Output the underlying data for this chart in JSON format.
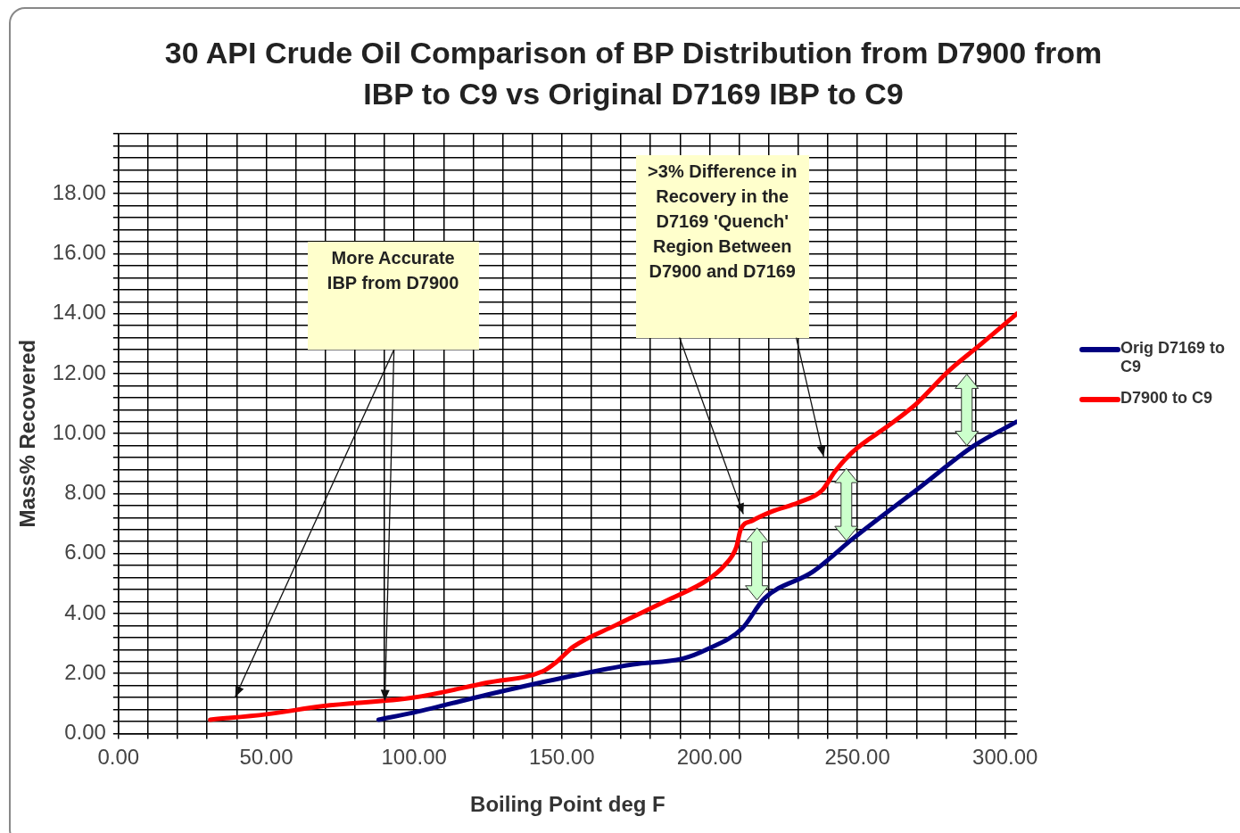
{
  "chart_data": {
    "type": "line",
    "title": "30 API Crude Oil Comparison of BP Distribution from D7900 from IBP to C9 vs Original D7169 IBP to C9",
    "xlabel": "Boiling Point deg F",
    "ylabel": "Mass% Recovered",
    "annotations": [
      "More Accurate IBP from D7900",
      ">3% Difference in Recovery in the D7169 'Quench' Region Between D7900 and D7169"
    ],
    "series": [
      {
        "name": "Orig D7169 to C9",
        "color": "#000080",
        "x": [
          88,
          100,
          125,
          150,
          174,
          191,
          199,
          211,
          218.5,
          235,
          248.5,
          271,
          289.5,
          304
        ],
        "values": [
          0.46,
          0.7,
          1.3,
          1.85,
          2.3,
          2.5,
          2.8,
          3.5,
          4.5,
          5.4,
          6.5,
          8.2,
          9.6,
          10.4
        ]
      },
      {
        "name": "D7900 to C9",
        "color": "#ff0000",
        "x": [
          31,
          50,
          69,
          100,
          125,
          143.5,
          148,
          154,
          168,
          187,
          199,
          205,
          209,
          210.5,
          214.5,
          221,
          230,
          238,
          242.5,
          248.5,
          261,
          270,
          281,
          292,
          304
        ],
        "values": [
          0.46,
          0.64,
          0.91,
          1.2,
          1.7,
          2.07,
          2.37,
          2.9,
          3.6,
          4.5,
          5.1,
          5.6,
          6.2,
          6.8,
          7.1,
          7.4,
          7.7,
          8.1,
          8.75,
          9.4,
          10.3,
          11.0,
          12.1,
          13.0,
          14.0
        ]
      }
    ],
    "xlim": [
      0,
      304
    ],
    "ylim": [
      0,
      20
    ],
    "xticks": [
      {
        "value": 0,
        "label": "0.00"
      },
      {
        "value": 10,
        "label": null
      },
      {
        "value": 20,
        "label": null
      },
      {
        "value": 30,
        "label": null
      },
      {
        "value": 40,
        "label": null
      },
      {
        "value": 50,
        "label": "50.00"
      },
      {
        "value": 60,
        "label": null
      },
      {
        "value": 70,
        "label": null
      },
      {
        "value": 80,
        "label": null
      },
      {
        "value": 90,
        "label": null
      },
      {
        "value": 100,
        "label": "100.00"
      },
      {
        "value": 110,
        "label": null
      },
      {
        "value": 120,
        "label": null
      },
      {
        "value": 130,
        "label": null
      },
      {
        "value": 140,
        "label": null
      },
      {
        "value": 150,
        "label": "150.00"
      },
      {
        "value": 160,
        "label": null
      },
      {
        "value": 170,
        "label": null
      },
      {
        "value": 180,
        "label": null
      },
      {
        "value": 190,
        "label": null
      },
      {
        "value": 200,
        "label": "200.00"
      },
      {
        "value": 210,
        "label": null
      },
      {
        "value": 220,
        "label": null
      },
      {
        "value": 230,
        "label": null
      },
      {
        "value": 240,
        "label": null
      },
      {
        "value": 250,
        "label": "250.00"
      },
      {
        "value": 260,
        "label": null
      },
      {
        "value": 270,
        "label": null
      },
      {
        "value": 280,
        "label": null
      },
      {
        "value": 290,
        "label": null
      },
      {
        "value": 300,
        "label": "300.00"
      }
    ],
    "yticks": [
      {
        "value": 0,
        "label": "0.00"
      },
      {
        "value": 0.4,
        "label": null
      },
      {
        "value": 0.8,
        "label": null
      },
      {
        "value": 1.2,
        "label": null
      },
      {
        "value": 1.6,
        "label": null
      },
      {
        "value": 2,
        "label": "2.00"
      },
      {
        "value": 2.4,
        "label": null
      },
      {
        "value": 2.8,
        "label": null
      },
      {
        "value": 3.2,
        "label": null
      },
      {
        "value": 3.6,
        "label": null
      },
      {
        "value": 4,
        "label": "4.00"
      },
      {
        "value": 4.4,
        "label": null
      },
      {
        "value": 4.8,
        "label": null
      },
      {
        "value": 5.2,
        "label": null
      },
      {
        "value": 5.6,
        "label": null
      },
      {
        "value": 6,
        "label": "6.00"
      },
      {
        "value": 6.4,
        "label": null
      },
      {
        "value": 6.8,
        "label": null
      },
      {
        "value": 7.2,
        "label": null
      },
      {
        "value": 7.6,
        "label": null
      },
      {
        "value": 8,
        "label": "8.00"
      },
      {
        "value": 8.4,
        "label": null
      },
      {
        "value": 8.8,
        "label": null
      },
      {
        "value": 9.2,
        "label": null
      },
      {
        "value": 9.6,
        "label": null
      },
      {
        "value": 10,
        "label": "10.00"
      },
      {
        "value": 10.4,
        "label": null
      },
      {
        "value": 10.8,
        "label": null
      },
      {
        "value": 11.2,
        "label": null
      },
      {
        "value": 11.6,
        "label": null
      },
      {
        "value": 12,
        "label": "12.00"
      },
      {
        "value": 12.4,
        "label": null
      },
      {
        "value": 12.8,
        "label": null
      },
      {
        "value": 13.2,
        "label": null
      },
      {
        "value": 13.6,
        "label": null
      },
      {
        "value": 14,
        "label": "14.00"
      },
      {
        "value": 14.4,
        "label": null
      },
      {
        "value": 14.8,
        "label": null
      },
      {
        "value": 15.2,
        "label": null
      },
      {
        "value": 15.6,
        "label": null
      },
      {
        "value": 16,
        "label": "16.00"
      },
      {
        "value": 16.4,
        "label": null
      },
      {
        "value": 16.8,
        "label": null
      },
      {
        "value": 17.2,
        "label": null
      },
      {
        "value": 17.6,
        "label": null
      },
      {
        "value": 18,
        "label": "18.00"
      },
      {
        "value": 18.4,
        "label": null
      },
      {
        "value": 18.8,
        "label": null
      },
      {
        "value": 19.2,
        "label": null
      },
      {
        "value": 19.6,
        "label": null
      },
      {
        "value": 20,
        "label": null
      }
    ],
    "grid": true,
    "legend": "right",
    "marker": "none",
    "line_style": "solid"
  }
}
